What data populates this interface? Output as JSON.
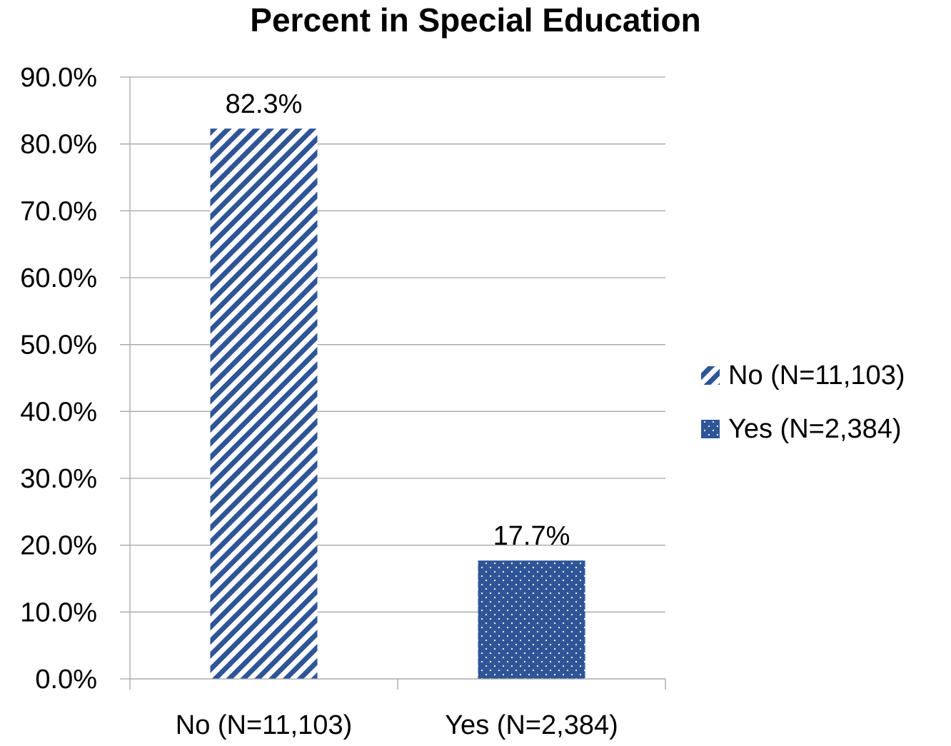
{
  "chart_data": {
    "type": "bar",
    "title": "Percent in Special Education",
    "xlabel": "",
    "ylabel": "",
    "categories": [
      "No (N=11,103)",
      "Yes (N=2,384)"
    ],
    "values": [
      82.3,
      17.7
    ],
    "data_labels": [
      "82.3%",
      "17.7%"
    ],
    "ylim": [
      0,
      90
    ],
    "yticks": [
      0,
      10,
      20,
      30,
      40,
      50,
      60,
      70,
      80,
      90
    ],
    "ytick_labels": [
      "0.0%",
      "10.0%",
      "20.0%",
      "30.0%",
      "40.0%",
      "50.0%",
      "60.0%",
      "70.0%",
      "80.0%",
      "90.0%"
    ],
    "grid": true,
    "legend": {
      "placement": "right",
      "entries": [
        "No (N=11,103)",
        "Yes (N=2,384)"
      ]
    },
    "colors": {
      "bar": "#2f5597",
      "gridline": "#a6a6a6",
      "axis": "#a6a6a6"
    },
    "patterns": [
      "diagonal-stripes",
      "dots"
    ]
  }
}
